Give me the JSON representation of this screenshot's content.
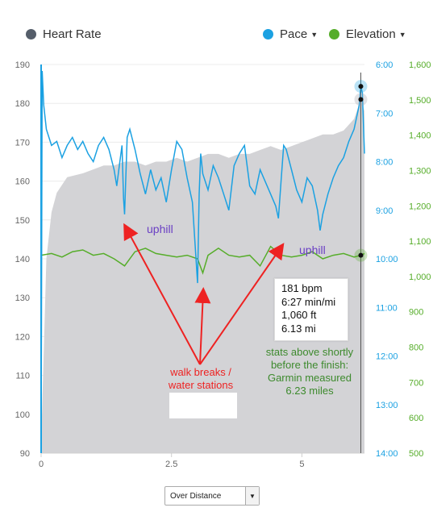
{
  "legend": {
    "heart_rate": {
      "label": "Heart Rate",
      "color": "#555e6a"
    },
    "pace": {
      "label": "Pace",
      "color": "#1ba1e2"
    },
    "elevation": {
      "label": "Elevation",
      "color": "#56ad2a"
    }
  },
  "tooltip": [
    "181 bpm",
    "6:27 min/mi",
    "1,060 ft",
    "6.13 mi"
  ],
  "annotations": {
    "uphill_1": "uphill",
    "uphill_2": "uphill",
    "walk_line1": "walk breaks /",
    "walk_line2": "water stations",
    "stats_line1": "stats above shortly",
    "stats_line2": "before the finish:",
    "stats_line3": "Garmin measured",
    "stats_line4": "6.23 miles"
  },
  "dropdown": {
    "selected": "Over Distance"
  },
  "colors": {
    "pace": "#1ba1e2",
    "elevation": "#56ad2a",
    "heart_rate_area": "#d3d3d6",
    "annotation_red": "#ee2222",
    "annotation_purple": "#6a3fc4",
    "annotation_green": "#3d8a2d"
  },
  "chart_data": {
    "type": "line",
    "x_unit": "mi",
    "xlim": [
      0,
      6.2
    ],
    "x_ticks": [
      "0",
      "2.5",
      "5"
    ],
    "cursor_x": 6.13,
    "heart_rate": {
      "axis": "left",
      "ylim": [
        90,
        190
      ],
      "ticks": [
        "190",
        "180",
        "170",
        "160",
        "150",
        "140",
        "130",
        "120",
        "110",
        "100",
        "90"
      ],
      "x": [
        0.0,
        0.1,
        0.2,
        0.3,
        0.5,
        0.8,
        1.0,
        1.2,
        1.4,
        1.6,
        1.8,
        2.0,
        2.2,
        2.4,
        2.6,
        2.8,
        3.0,
        3.2,
        3.4,
        3.6,
        3.8,
        4.0,
        4.2,
        4.4,
        4.6,
        4.8,
        5.0,
        5.2,
        5.4,
        5.6,
        5.8,
        6.0,
        6.13,
        6.2
      ],
      "values": [
        92,
        140,
        152,
        157,
        161,
        162,
        163,
        164,
        164,
        165,
        165,
        164,
        165,
        165,
        166,
        165,
        166,
        167,
        167,
        166,
        167,
        167,
        168,
        169,
        168,
        169,
        170,
        171,
        172,
        172,
        173,
        176,
        181,
        178
      ]
    },
    "pace": {
      "axis": "right-1",
      "unit": "min/mi",
      "ylim_seconds": [
        360,
        840
      ],
      "inverted": true,
      "ticks": [
        "6:00",
        "7:00",
        "8:00",
        "9:00",
        "10:00",
        "11:00",
        "12:00",
        "13:00",
        "14:00"
      ],
      "x": [
        0.0,
        0.02,
        0.05,
        0.1,
        0.15,
        0.2,
        0.3,
        0.4,
        0.5,
        0.6,
        0.7,
        0.8,
        0.9,
        1.0,
        1.1,
        1.2,
        1.3,
        1.4,
        1.45,
        1.5,
        1.55,
        1.58,
        1.6,
        1.65,
        1.7,
        1.8,
        1.9,
        2.0,
        2.1,
        2.2,
        2.3,
        2.4,
        2.5,
        2.6,
        2.7,
        2.8,
        2.9,
        2.95,
        3.0,
        3.03,
        3.06,
        3.1,
        3.2,
        3.3,
        3.4,
        3.5,
        3.6,
        3.7,
        3.8,
        3.9,
        4.0,
        4.1,
        4.2,
        4.3,
        4.4,
        4.5,
        4.55,
        4.6,
        4.65,
        4.7,
        4.8,
        4.9,
        5.0,
        5.1,
        5.2,
        5.3,
        5.35,
        5.4,
        5.5,
        5.6,
        5.7,
        5.8,
        5.9,
        6.0,
        6.05,
        6.1,
        6.13,
        6.16,
        6.2
      ],
      "values": [
        "13:55",
        "6:08",
        "6:50",
        "7:20",
        "7:30",
        "7:40",
        "7:35",
        "7:55",
        "7:40",
        "7:30",
        "7:45",
        "7:35",
        "7:50",
        "8:00",
        "7:40",
        "7:30",
        "7:45",
        "8:10",
        "8:30",
        "8:05",
        "7:40",
        "8:45",
        "9:05",
        "7:30",
        "7:20",
        "7:45",
        "8:15",
        "8:40",
        "8:10",
        "8:35",
        "8:20",
        "8:50",
        "8:10",
        "7:35",
        "7:45",
        "8:20",
        "8:50",
        "9:40",
        "10:30",
        "8:40",
        "7:50",
        "8:15",
        "8:35",
        "8:05",
        "8:20",
        "8:40",
        "9:00",
        "8:05",
        "7:50",
        "7:40",
        "8:30",
        "8:40",
        "8:10",
        "8:25",
        "8:40",
        "8:55",
        "9:10",
        "8:25",
        "7:40",
        "7:45",
        "8:10",
        "8:35",
        "8:50",
        "8:20",
        "8:30",
        "9:00",
        "9:25",
        "9:05",
        "8:40",
        "8:20",
        "8:05",
        "7:55",
        "7:35",
        "7:20",
        "7:05",
        "6:50",
        "6:27",
        "6:35",
        "7:50"
      ]
    },
    "elevation": {
      "axis": "right-2",
      "unit": "ft",
      "ylim": [
        500,
        1600
      ],
      "ticks": [
        "1,600",
        "1,500",
        "1,400",
        "1,300",
        "1,200",
        "1,100",
        "1,000",
        "900",
        "800",
        "700",
        "600",
        "500"
      ],
      "x": [
        0.0,
        0.2,
        0.4,
        0.6,
        0.8,
        1.0,
        1.2,
        1.4,
        1.6,
        1.8,
        2.0,
        2.2,
        2.4,
        2.6,
        2.8,
        3.0,
        3.1,
        3.2,
        3.4,
        3.6,
        3.8,
        4.0,
        4.2,
        4.4,
        4.6,
        4.8,
        5.0,
        5.2,
        5.4,
        5.6,
        5.8,
        6.0,
        6.13,
        6.2
      ],
      "values": [
        1060,
        1065,
        1055,
        1070,
        1075,
        1060,
        1065,
        1050,
        1030,
        1070,
        1080,
        1065,
        1060,
        1055,
        1060,
        1050,
        1010,
        1060,
        1080,
        1060,
        1055,
        1060,
        1030,
        1085,
        1060,
        1055,
        1060,
        1070,
        1050,
        1060,
        1065,
        1055,
        1060,
        1065
      ]
    }
  }
}
